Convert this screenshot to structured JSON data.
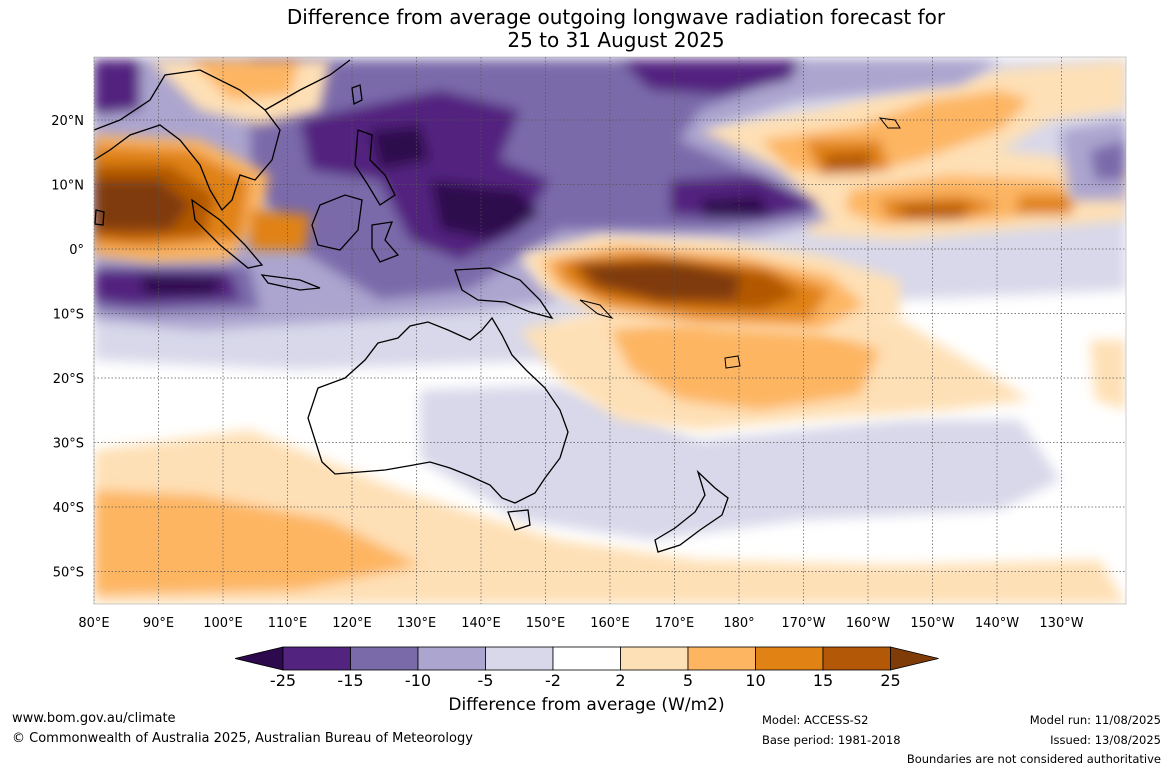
{
  "title_line1": "Difference from average outgoing longwave radiation forecast for",
  "title_line2": "25 to 31 August 2025",
  "lat_labels": [
    "20°N",
    "10°N",
    "0°",
    "10°S",
    "20°S",
    "30°S",
    "40°S",
    "50°S"
  ],
  "lon_labels": [
    "80°E",
    "90°E",
    "100°E",
    "110°E",
    "120°E",
    "130°E",
    "140°E",
    "150°E",
    "160°E",
    "170°E",
    "180°",
    "170°W",
    "160°W",
    "150°W",
    "140°W",
    "130°W"
  ],
  "colorbar": {
    "title": "Difference from average (W/m2)",
    "ticks": [
      "-25",
      "-15",
      "-10",
      "-5",
      "-2",
      "2",
      "5",
      "10",
      "15",
      "25"
    ],
    "colors": [
      "#2d0a4e",
      "#52247f",
      "#7a6aaa",
      "#aca5cf",
      "#d8d8ea",
      "#ffffff",
      "#fee0b6",
      "#fdb562",
      "#e08214",
      "#b35806",
      "#7f3b08"
    ]
  },
  "footer": {
    "website": "www.bom.gov.au/climate",
    "copyright": "© Commonwealth of Australia 2025, Australian Bureau of Meteorology",
    "model": "Model: ACCESS-S2",
    "base_period": "Base period: 1981-2018",
    "model_run": "Model run: 11/08/2025",
    "issued": "Issued: 13/08/2025",
    "boundaries": "Boundaries are not considered authoritative"
  }
}
